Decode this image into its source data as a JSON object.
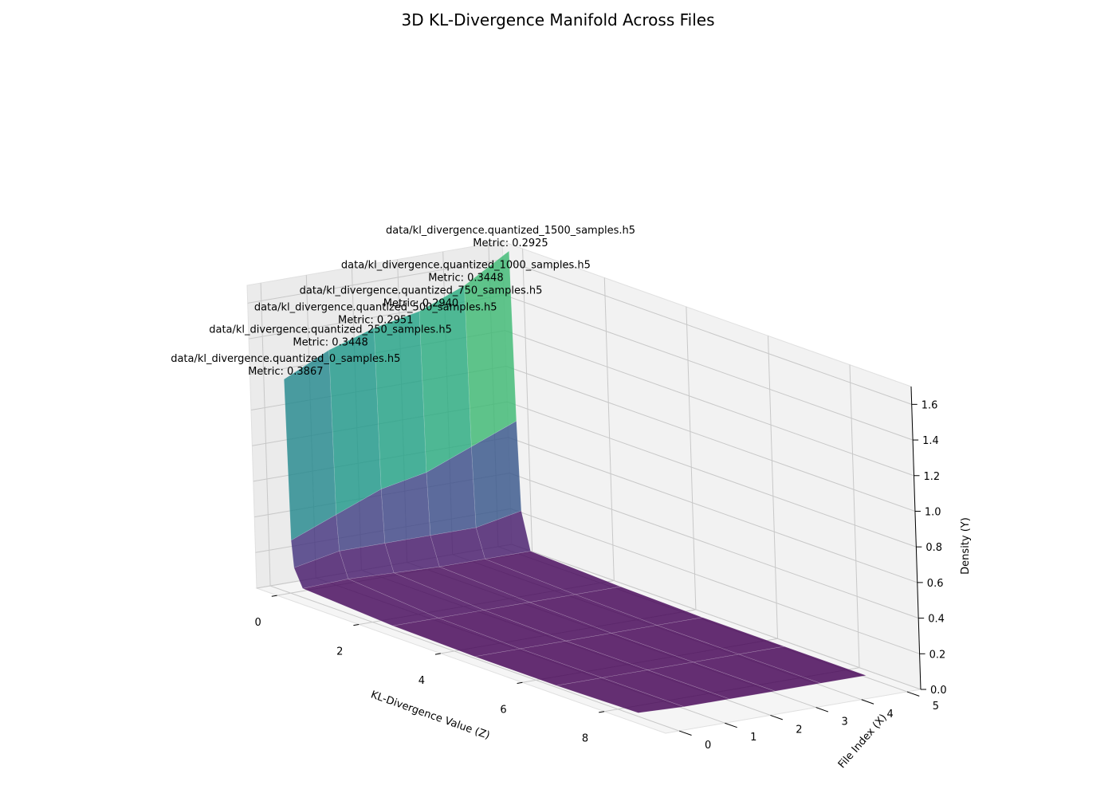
{
  "chart_data": {
    "type": "surface3d",
    "title": "3D KL-Divergence Manifold Across Files",
    "xlabel": "KL-Divergence Value (Z)",
    "ylabel": "File Index (X)",
    "zlabel": "Density (Y)",
    "x_ticks": [
      "0",
      "2",
      "4",
      "6",
      "8"
    ],
    "y_ticks": [
      "0",
      "1",
      "2",
      "3",
      "4",
      "5"
    ],
    "z_ticks": [
      "0.0",
      "0.2",
      "0.4",
      "0.6",
      "0.8",
      "1.0",
      "1.2",
      "1.4",
      "1.6"
    ],
    "xlim": [
      -0.5,
      9.5
    ],
    "ylim": [
      -0.3,
      5.3
    ],
    "zlim": [
      0,
      1.7
    ],
    "colormap": "viridis",
    "grid": true,
    "files": [
      {
        "file_index": 0,
        "name": "data/kl_divergence.quantized_0_samples.h5",
        "metric_label": "Metric: 0.3867"
      },
      {
        "file_index": 1,
        "name": "data/kl_divergence.quantized_250_samples.h5",
        "metric_label": "Metric: 0.3448"
      },
      {
        "file_index": 2,
        "name": "data/kl_divergence.quantized_500_samples.h5",
        "metric_label": "Metric: 0.2951"
      },
      {
        "file_index": 3,
        "name": "data/kl_divergence.quantized_750_samples.h5",
        "metric_label": "Metric: 0.2940"
      },
      {
        "file_index": 4,
        "name": "data/kl_divergence.quantized_1000_samples.h5",
        "metric_label": "Metric: 0.3448"
      },
      {
        "file_index": 5,
        "name": "data/kl_divergence.quantized_1500_samples.h5",
        "metric_label": "Metric: 0.2925"
      }
    ],
    "kl_values": [
      0.0,
      0.05,
      0.1,
      0.3,
      2.5,
      4.5,
      6.5,
      8.5
    ],
    "density": [
      [
        1.2,
        0.3,
        0.15,
        0.05,
        0.02,
        0.01,
        0.01,
        0.02
      ],
      [
        1.32,
        0.4,
        0.2,
        0.06,
        0.02,
        0.01,
        0.01,
        0.01
      ],
      [
        1.4,
        0.5,
        0.2,
        0.05,
        0.02,
        0.01,
        0.01,
        0.01
      ],
      [
        1.45,
        0.55,
        0.2,
        0.04,
        0.02,
        0.01,
        0.01,
        0.01
      ],
      [
        1.55,
        0.65,
        0.2,
        0.04,
        0.02,
        0.01,
        0.01,
        0.01
      ],
      [
        1.7,
        0.75,
        0.25,
        0.04,
        0.02,
        0.01,
        0.01,
        0.01
      ]
    ]
  }
}
